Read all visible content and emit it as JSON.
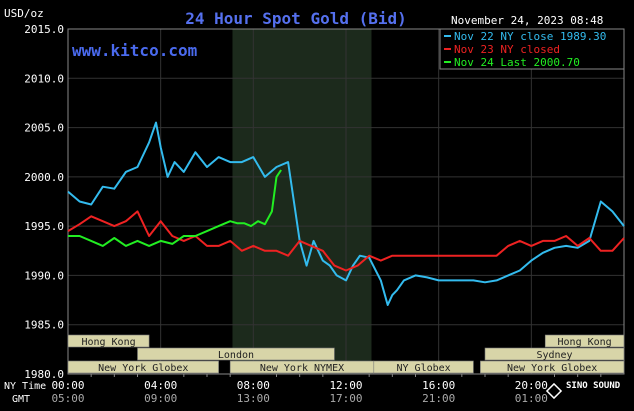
{
  "chart_data": {
    "type": "line",
    "title": "24 Hour Spot Gold (Bid)",
    "website": "www.kitco.com",
    "ylabel": "USD/oz",
    "ylim": [
      1980,
      2015
    ],
    "y_ticks": [
      "2015.0",
      "2010.0",
      "2005.0",
      "2000.0",
      "1995.0",
      "1990.0",
      "1985.0",
      "1980.0"
    ],
    "x_hours": [
      0,
      24
    ],
    "x_ticks_ny": [
      "00:00",
      "04:00",
      "08:00",
      "12:00",
      "16:00",
      "20:00"
    ],
    "x_ticks_gmt": [
      "05:00",
      "09:00",
      "13:00",
      "17:00",
      "21:00",
      "01:00"
    ],
    "x_tick_hours": [
      0,
      4,
      8,
      12,
      16,
      20
    ],
    "row_label_ny": "NY Time",
    "row_label_gmt": "GMT",
    "date_label": "November 24, 2023 08:48",
    "grid": true,
    "legend_position": "top-right",
    "background_color": "#000000",
    "grid_color": "#333333",
    "shaded_band_color": "#1c2a1c",
    "shaded_band_hours": [
      7.1,
      13.1
    ],
    "series": [
      {
        "name": "Nov 22 NY close 1989.30",
        "color": "#33bbee",
        "x": [
          0,
          0.5,
          1,
          1.5,
          2,
          2.5,
          3,
          3.5,
          3.8,
          4,
          4.3,
          4.6,
          5,
          5.5,
          6,
          6.5,
          7,
          7.5,
          8,
          8.5,
          9,
          9.5,
          10,
          10.3,
          10.6,
          11,
          11.3,
          11.6,
          12,
          12.3,
          12.6,
          13,
          13.5,
          13.8,
          14,
          14.2,
          14.5,
          15,
          15.5,
          16,
          16.5,
          17,
          17.5,
          18,
          18.5,
          19,
          19.5,
          20,
          20.5,
          21,
          21.5,
          22,
          22.5,
          23,
          23.5,
          24
        ],
        "values": [
          1998.5,
          1997.5,
          1997.2,
          1999.0,
          1998.8,
          2000.5,
          2001.0,
          2003.5,
          2005.5,
          2003.0,
          2000.0,
          2001.5,
          2000.5,
          2002.5,
          2001.0,
          2002.0,
          2001.5,
          2001.5,
          2002.0,
          2000.0,
          2001.0,
          2001.5,
          1993.5,
          1991.0,
          1993.5,
          1991.5,
          1991.0,
          1990.0,
          1989.5,
          1991.0,
          1992.0,
          1991.8,
          1989.5,
          1987.0,
          1988.0,
          1988.5,
          1989.5,
          1990.0,
          1989.8,
          1989.5,
          1989.5,
          1989.5,
          1989.5,
          1989.3,
          1989.5,
          1990.0,
          1990.5,
          1991.5,
          1992.3,
          1992.8,
          1993.0,
          1992.8,
          1993.5,
          1997.5,
          1996.5,
          1995.0
        ]
      },
      {
        "name": "Nov 23 NY closed",
        "color": "#ee2222",
        "x": [
          0,
          0.5,
          1,
          1.5,
          2,
          2.5,
          3,
          3.5,
          4,
          4.5,
          5,
          5.5,
          6,
          6.5,
          7,
          7.5,
          8,
          8.5,
          9,
          9.5,
          10,
          10.5,
          11,
          11.5,
          12,
          12.5,
          13,
          13.5,
          14,
          14.5,
          15,
          16,
          17,
          18,
          18.5,
          19,
          19.5,
          20,
          20.5,
          21,
          21.5,
          22,
          22.5,
          23,
          23.5,
          24
        ],
        "values": [
          1994.5,
          1995.2,
          1996.0,
          1995.5,
          1995.0,
          1995.5,
          1996.5,
          1994.0,
          1995.5,
          1994.0,
          1993.5,
          1994.0,
          1993.0,
          1993.0,
          1993.5,
          1992.5,
          1993.0,
          1992.5,
          1992.5,
          1992.0,
          1993.5,
          1993.0,
          1992.5,
          1991.0,
          1990.5,
          1991.0,
          1992.0,
          1991.5,
          1992.0,
          1992.0,
          1992.0,
          1992.0,
          1992.0,
          1992.0,
          1992.0,
          1993.0,
          1993.5,
          1993.0,
          1993.5,
          1993.5,
          1994.0,
          1993.0,
          1993.8,
          1992.5,
          1992.5,
          1993.8
        ]
      },
      {
        "name": "Nov 24 Last 2000.70",
        "color": "#22ee22",
        "x": [
          0,
          0.5,
          1,
          1.5,
          2,
          2.5,
          3,
          3.5,
          4,
          4.5,
          5,
          5.5,
          6,
          6.5,
          7,
          7.3,
          7.6,
          7.9,
          8.2,
          8.5,
          8.8,
          9.0,
          9.2
        ],
        "values": [
          1994.0,
          1994.0,
          1993.5,
          1993.0,
          1993.8,
          1993.0,
          1993.5,
          1993.0,
          1993.5,
          1993.2,
          1994.0,
          1994.0,
          1994.5,
          1995.0,
          1995.5,
          1995.3,
          1995.3,
          1995.0,
          1995.5,
          1995.2,
          1996.5,
          2000.0,
          2000.7
        ]
      }
    ],
    "market_sessions": [
      {
        "name": "Hong Kong",
        "start_hour": 0,
        "end_hour": 3.5,
        "row": 0
      },
      {
        "name": "Hong Kong",
        "start_hour": 20.6,
        "end_hour": 24,
        "row": 0
      },
      {
        "name": "London",
        "start_hour": 3.0,
        "end_hour": 11.5,
        "row": 1
      },
      {
        "name": "Sydney",
        "start_hour": 18.0,
        "end_hour": 24,
        "row": 1
      },
      {
        "name": "New York Globex",
        "start_hour": 0,
        "end_hour": 6.5,
        "row": 2
      },
      {
        "name": "New York NYMEX",
        "start_hour": 7.0,
        "end_hour": 13.2,
        "row": 2
      },
      {
        "name": "NY Globex",
        "start_hour": 13.2,
        "end_hour": 17.5,
        "row": 2
      },
      {
        "name": "New York Globex",
        "start_hour": 17.8,
        "end_hour": 24,
        "row": 2
      }
    ],
    "session_bar_color": "#d8d5a8",
    "watermark": "SINO SOUND"
  }
}
